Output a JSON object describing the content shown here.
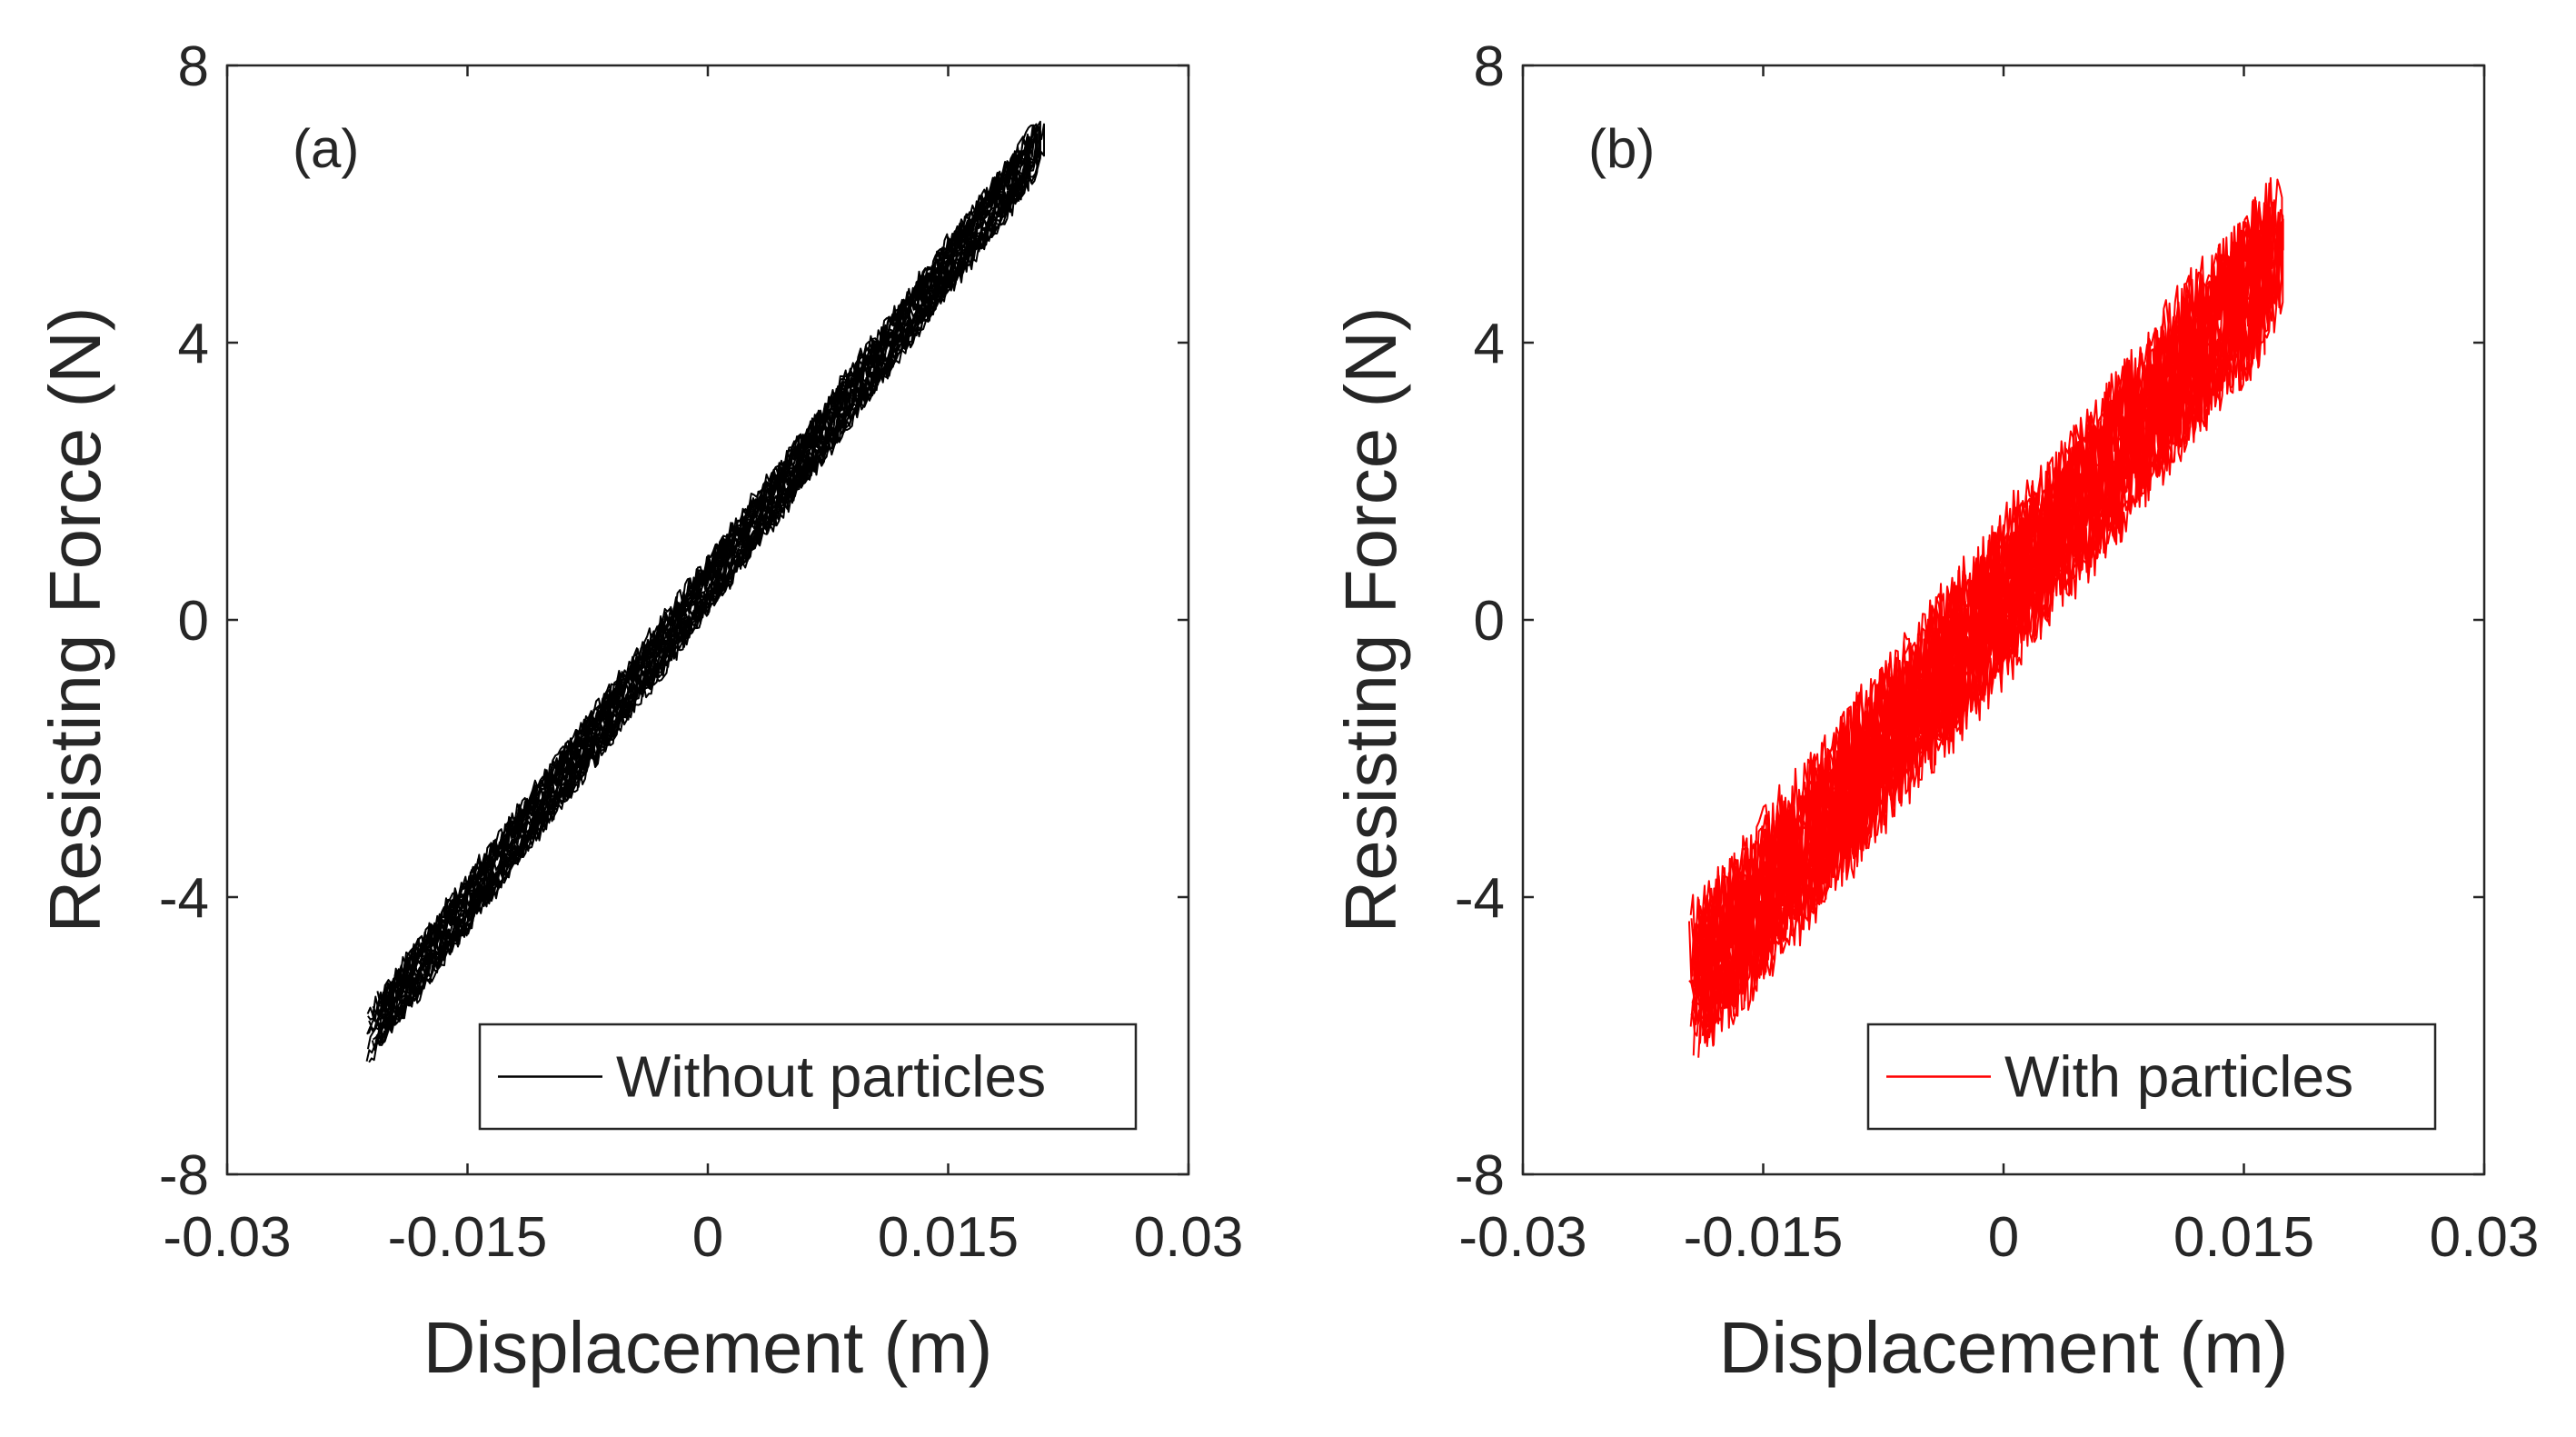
{
  "chart_data": [
    {
      "type": "line",
      "panel_label": "(a)",
      "xlabel": "Displacement (m)",
      "ylabel": "Resisting Force (N)",
      "xlim": [
        -0.03,
        0.03
      ],
      "ylim": [
        -8,
        8
      ],
      "xticks": [
        -0.03,
        -0.015,
        0,
        0.015,
        0.03
      ],
      "xtick_labels": [
        "-0.03",
        "-0.015",
        "0",
        "0.015",
        "0.03"
      ],
      "yticks": [
        -8,
        -4,
        0,
        4,
        8
      ],
      "ytick_labels": [
        "-8",
        "-4",
        "0",
        "4",
        "8"
      ],
      "grid": false,
      "legend_position": "bottom-right",
      "series": [
        {
          "name": "Without particles",
          "color": "#000000",
          "trend": {
            "x_min": -0.0215,
            "x_max": 0.021,
            "slope": 306,
            "intercept": 0.5
          },
          "band_half_width_N": 0.35,
          "cycles": 14
        }
      ]
    },
    {
      "type": "line",
      "panel_label": "(b)",
      "xlabel": "Displacement (m)",
      "ylabel": "Resisting Force (N)",
      "xlim": [
        -0.03,
        0.03
      ],
      "ylim": [
        -8,
        8
      ],
      "xticks": [
        -0.03,
        -0.015,
        0,
        0.015,
        0.03
      ],
      "xtick_labels": [
        "-0.03",
        "-0.015",
        "0",
        "0.015",
        "0.03"
      ],
      "yticks": [
        -8,
        -4,
        0,
        4,
        8
      ],
      "ytick_labels": [
        "-8",
        "-4",
        "0",
        "4",
        "8"
      ],
      "grid": false,
      "legend_position": "bottom-right",
      "series": [
        {
          "name": "With particles",
          "color": "#ff0000",
          "trend": {
            "x_min": -0.0198,
            "x_max": 0.0175,
            "slope": 290,
            "intercept": 0.3
          },
          "band_half_width_N": 0.75,
          "cycles": 14
        }
      ]
    }
  ]
}
